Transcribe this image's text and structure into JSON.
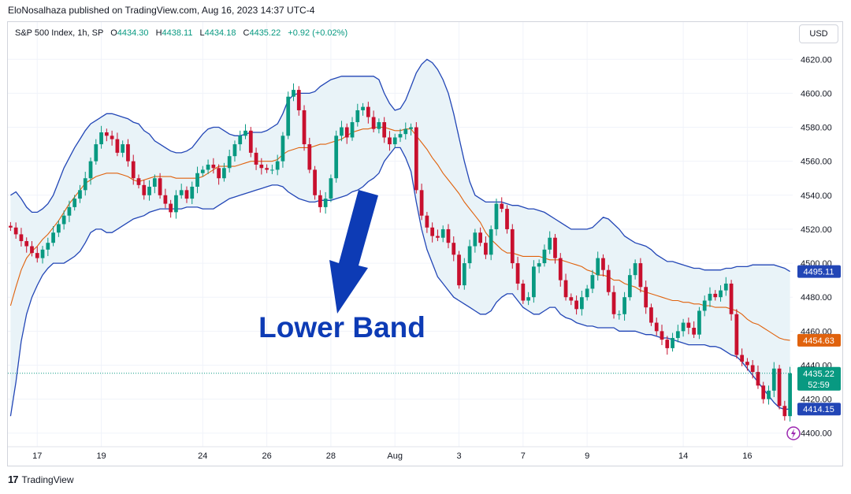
{
  "header": {
    "text": "EloNosalhaza published on TradingView.com, Aug 16, 2023 14:37 UTC-4"
  },
  "legend": {
    "symbol": "S&P 500 Index, 1h, SP",
    "o_label": "O",
    "o_value": "4434.30",
    "h_label": "H",
    "h_value": "4438.11",
    "l_label": "L",
    "l_value": "4434.18",
    "c_label": "C",
    "c_value": "4435.22",
    "change": "+0.92 (+0.02%)"
  },
  "currency_button": "USD",
  "annotation": {
    "text": "Lower Band",
    "color": "#0d3bb5"
  },
  "footer": {
    "brand": "TradingView",
    "logo_text": "17"
  },
  "colors": {
    "up": "#089981",
    "down": "#c8102e",
    "band": "#2246b6",
    "basis": "#e0620d",
    "band_fill": "#e9f3f8",
    "price_line": "#089981"
  },
  "chart_data": {
    "type": "candlestick",
    "title": "S&P 500 Index, 1h, SP",
    "indicator": "Bollinger Bands",
    "ylim": [
      4392,
      4628
    ],
    "y_ticks": [
      4400,
      4420,
      4440,
      4460,
      4480,
      4500,
      4520,
      4540,
      4560,
      4580,
      4600,
      4620
    ],
    "y_tick_labels": [
      "4400.00",
      "4420.00",
      "4440.00",
      "4460.00",
      "4480.00",
      "4500.00",
      "4520.00",
      "4540.00",
      "4560.00",
      "4580.00",
      "4600.00",
      "4620.00"
    ],
    "x_ticks": [
      {
        "label": "17",
        "bar": 5
      },
      {
        "label": "19",
        "bar": 17
      },
      {
        "label": "24",
        "bar": 36
      },
      {
        "label": "26",
        "bar": 48
      },
      {
        "label": "28",
        "bar": 60
      },
      {
        "label": "Aug",
        "bar": 72
      },
      {
        "label": "3",
        "bar": 84
      },
      {
        "label": "7",
        "bar": 96
      },
      {
        "label": "9",
        "bar": 108
      },
      {
        "label": "14",
        "bar": 126
      },
      {
        "label": "16",
        "bar": 138
      }
    ],
    "last_price": 4435.22,
    "price_labels": [
      {
        "text": "4495.11",
        "value": 4495.11,
        "color": "#2246b6"
      },
      {
        "text": "4454.63",
        "value": 4454.63,
        "color": "#e0620d"
      },
      {
        "text": "4435.22",
        "value": 4435.22,
        "color": "#089981",
        "sub": "52:59"
      },
      {
        "text": "4414.15",
        "value": 4414.15,
        "color": "#2246b6"
      }
    ],
    "closes": [
      4521,
      4517,
      4513,
      4510,
      4506,
      4503,
      4508,
      4512,
      4518,
      4523,
      4528,
      4533,
      4538,
      4543,
      4550,
      4560,
      4570,
      4577,
      4575,
      4573,
      4565,
      4570,
      4560,
      4550,
      4546,
      4540,
      4545,
      4550,
      4540,
      4535,
      4530,
      4540,
      4543,
      4538,
      4545,
      4553,
      4555,
      4558,
      4556,
      4550,
      4556,
      4563,
      4570,
      4575,
      4578,
      4565,
      4558,
      4556,
      4555,
      4555,
      4560,
      4575,
      4598,
      4602,
      4590,
      4570,
      4555,
      4540,
      4533,
      4538,
      4550,
      4575,
      4580,
      4574,
      4583,
      4590,
      4592,
      4586,
      4579,
      4583,
      4574,
      4570,
      4574,
      4576,
      4579,
      4580,
      4543,
      4528,
      4521,
      4516,
      4515,
      4520,
      4512,
      4505,
      4487,
      4500,
      4510,
      4518,
      4512,
      4505,
      4520,
      4535,
      4532,
      4520,
      4500,
      4488,
      4478,
      4480,
      4498,
      4500,
      4508,
      4515,
      4503,
      4490,
      4480,
      4478,
      4473,
      4480,
      4485,
      4493,
      4503,
      4496,
      4483,
      4470,
      4470,
      4480,
      4493,
      4500,
      4486,
      4474,
      4465,
      4460,
      4455,
      4450,
      4456,
      4460,
      4465,
      4462,
      4458,
      4472,
      4478,
      4482,
      4480,
      4484,
      4488,
      4470,
      4446,
      4442,
      4440,
      4436,
      4428,
      4420,
      4425,
      4438,
      4416,
      4410,
      4435.22
    ],
    "basis": [
      4475,
      4486,
      4496,
      4503,
      4507,
      4510,
      4514,
      4517,
      4521,
      4525,
      4530,
      4535,
      4539,
      4543,
      4547,
      4549,
      4551,
      4552,
      4553,
      4553,
      4553,
      4552,
      4551,
      4549,
      4548,
      4549,
      4550,
      4551,
      4551,
      4551,
      4551,
      4550,
      4550,
      4550,
      4550,
      4550,
      4551,
      4553,
      4555,
      4557,
      4557,
      4557,
      4557,
      4558,
      4559,
      4560,
      4560,
      4560,
      4560,
      4560,
      4561,
      4564,
      4566,
      4567,
      4568,
      4568,
      4568,
      4569,
      4570,
      4570,
      4571,
      4572,
      4573,
      4575,
      4577,
      4578,
      4579,
      4579,
      4580,
      4580,
      4580,
      4579,
      4578,
      4578,
      4579,
      4579,
      4575,
      4571,
      4567,
      4562,
      4558,
      4553,
      4549,
      4545,
      4541,
      4536,
      4532,
      4528,
      4524,
      4518,
      4514,
      4511,
      4508,
      4506,
      4506,
      4505,
      4504,
      4504,
      4504,
      4504,
      4503,
      4502,
      4502,
      4502,
      4501,
      4500,
      4499,
      4498,
      4496,
      4495,
      4493,
      4493,
      4492,
      4490,
      4490,
      4488,
      4487,
      4486,
      4484,
      4483,
      4482,
      4481,
      4480,
      4479,
      4478,
      4478,
      4477,
      4477,
      4476,
      4476,
      4475,
      4475,
      4474,
      4474,
      4474,
      4473,
      4472,
      4470,
      4467,
      4465,
      4464,
      4462,
      4460,
      4458,
      4456,
      4455,
      4454.63
    ],
    "upper": [
      4540,
      4542,
      4538,
      4533,
      4530,
      4530,
      4532,
      4535,
      4540,
      4548,
      4556,
      4562,
      4568,
      4573,
      4578,
      4582,
      4584,
      4586,
      4588,
      4588,
      4587,
      4586,
      4585,
      4583,
      4582,
      4578,
      4576,
      4572,
      4570,
      4568,
      4566,
      4565,
      4565,
      4566,
      4568,
      4572,
      4576,
      4579,
      4580,
      4580,
      4578,
      4576,
      4575,
      4575,
      4576,
      4577,
      4577,
      4577,
      4578,
      4580,
      4582,
      4588,
      4596,
      4599,
      4600,
      4600,
      4600,
      4601,
      4604,
      4606,
      4608,
      4609,
      4610,
      4610,
      4610,
      4610,
      4610,
      4610,
      4610,
      4608,
      4600,
      4594,
      4590,
      4591,
      4596,
      4604,
      4612,
      4617,
      4620,
      4618,
      4614,
      4608,
      4600,
      4588,
      4574,
      4560,
      4548,
      4540,
      4538,
      4536,
      4536,
      4536,
      4536,
      4535,
      4534,
      4534,
      4533,
      4532,
      4532,
      4531,
      4530,
      4528,
      4526,
      4524,
      4522,
      4520,
      4520,
      4520,
      4520,
      4521,
      4524,
      4527,
      4526,
      4523,
      4520,
      4516,
      4514,
      4512,
      4511,
      4510,
      4508,
      4505,
      4503,
      4501,
      4501,
      4500,
      4499,
      4498,
      4497,
      4497,
      4496,
      4496,
      4496,
      4496,
      4497,
      4497,
      4498,
      4498,
      4498,
      4499,
      4499,
      4499,
      4499,
      4499,
      4498,
      4497,
      4495.11
    ],
    "lower": [
      4410,
      4430,
      4454,
      4470,
      4480,
      4487,
      4493,
      4497,
      4500,
      4500,
      4500,
      4502,
      4504,
      4507,
      4512,
      4518,
      4520,
      4520,
      4518,
      4518,
      4520,
      4522,
      4524,
      4526,
      4527,
      4528,
      4530,
      4531,
      4532,
      4532,
      4532,
      4532,
      4532,
      4533,
      4533,
      4533,
      4532,
      4532,
      4532,
      4534,
      4536,
      4538,
      4539,
      4540,
      4541,
      4542,
      4543,
      4544,
      4545,
      4546,
      4546,
      4545,
      4542,
      4540,
      4538,
      4537,
      4536,
      4536,
      4537,
      4537,
      4537,
      4538,
      4539,
      4540,
      4542,
      4543,
      4545,
      4548,
      4550,
      4553,
      4560,
      4564,
      4568,
      4568,
      4562,
      4554,
      4536,
      4520,
      4508,
      4500,
      4492,
      4488,
      4484,
      4480,
      4478,
      4476,
      4474,
      4472,
      4470,
      4470,
      4472,
      4477,
      4480,
      4482,
      4482,
      4478,
      4474,
      4472,
      4470,
      4470,
      4472,
      4474,
      4474,
      4470,
      4468,
      4467,
      4465,
      4464,
      4463,
      4463,
      4462,
      4462,
      4462,
      4462,
      4460,
      4460,
      4460,
      4460,
      4459,
      4458,
      4458,
      4457,
      4456,
      4456,
      4455,
      4454,
      4453,
      4452,
      4452,
      4452,
      4452,
      4451,
      4451,
      4450,
      4448,
      4446,
      4445,
      4442,
      4438,
      4434,
      4430,
      4426,
      4422,
      4418,
      4415,
      4414,
      4414.15
    ]
  }
}
